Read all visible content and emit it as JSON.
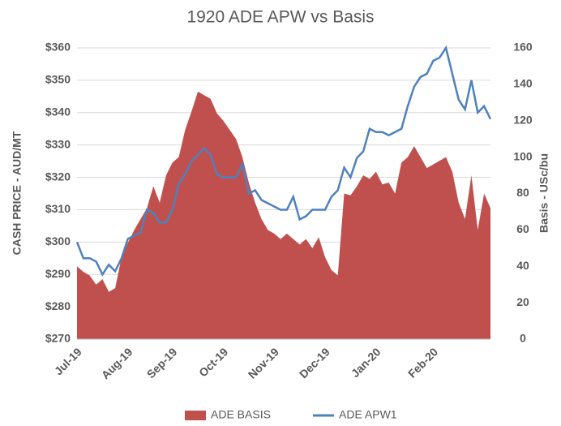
{
  "chart_data": {
    "type": "line-area",
    "title": "1920 ADE APW vs Basis",
    "y_label": "CASH PRICE - AUD/MT",
    "y2_label": "Basis - USc/bu",
    "categories": [
      "Jul-19",
      null,
      null,
      null,
      null,
      null,
      null,
      null,
      "Aug-19",
      null,
      null,
      null,
      null,
      null,
      null,
      "Sep-19",
      null,
      null,
      null,
      null,
      null,
      null,
      null,
      "Oct-19",
      null,
      null,
      null,
      null,
      null,
      null,
      null,
      "Nov-19",
      null,
      null,
      null,
      null,
      null,
      null,
      null,
      "Dec-19",
      null,
      null,
      null,
      null,
      null,
      null,
      null,
      "Jan-20",
      null,
      null,
      null,
      null,
      null,
      null,
      null,
      null,
      "Feb-20",
      null,
      null,
      null,
      null,
      null,
      null,
      null,
      null,
      null
    ],
    "series": [
      {
        "name": "ADE BASIS",
        "kind": "area",
        "axis": "y2",
        "color": "#c0504d",
        "values": [
          40,
          37,
          35,
          30,
          33,
          26,
          28,
          45,
          53,
          60,
          66,
          72,
          84,
          75,
          90,
          97,
          100,
          115,
          125,
          136,
          134,
          132,
          124,
          120,
          115,
          110,
          100,
          86,
          75,
          66,
          60,
          58,
          55,
          58,
          55,
          52,
          55,
          50,
          56,
          45,
          38,
          35,
          80,
          79,
          84,
          90,
          88,
          92,
          85,
          86,
          80,
          97,
          100,
          106,
          100,
          94,
          96,
          98,
          100,
          92,
          75,
          66,
          90,
          60,
          80,
          72
        ]
      },
      {
        "name": "ADE APW1",
        "kind": "line",
        "axis": "y",
        "color": "#4f81bd",
        "values": [
          300,
          295,
          295,
          294,
          290,
          293,
          291,
          295,
          301,
          302,
          303,
          310,
          309,
          306,
          306,
          310,
          318,
          321,
          325,
          327,
          329,
          327,
          321,
          320,
          320,
          320,
          324,
          315,
          316,
          313,
          312,
          311,
          310,
          310,
          314,
          307,
          308,
          310,
          310,
          310,
          314,
          316,
          323,
          320,
          326,
          328,
          335,
          334,
          334,
          333,
          334,
          335,
          342,
          348,
          351,
          352,
          356,
          357,
          360,
          352,
          344,
          341,
          350,
          340,
          342,
          338
        ]
      }
    ],
    "ylim": [
      270,
      360
    ],
    "yticks": [
      {
        "value": 270,
        "label": "$270"
      },
      {
        "value": 280,
        "label": "$280"
      },
      {
        "value": 290,
        "label": "$290"
      },
      {
        "value": 300,
        "label": "$300"
      },
      {
        "value": 310,
        "label": "$310"
      },
      {
        "value": 320,
        "label": "$320"
      },
      {
        "value": 330,
        "label": "$330"
      },
      {
        "value": 340,
        "label": "$340"
      },
      {
        "value": 350,
        "label": "$350"
      },
      {
        "value": 360,
        "label": "$360"
      }
    ],
    "y2lim": [
      0,
      160
    ],
    "y2ticks": [
      0,
      20,
      40,
      60,
      80,
      100,
      120,
      140,
      160
    ],
    "grid": true,
    "legend": "bottom"
  }
}
